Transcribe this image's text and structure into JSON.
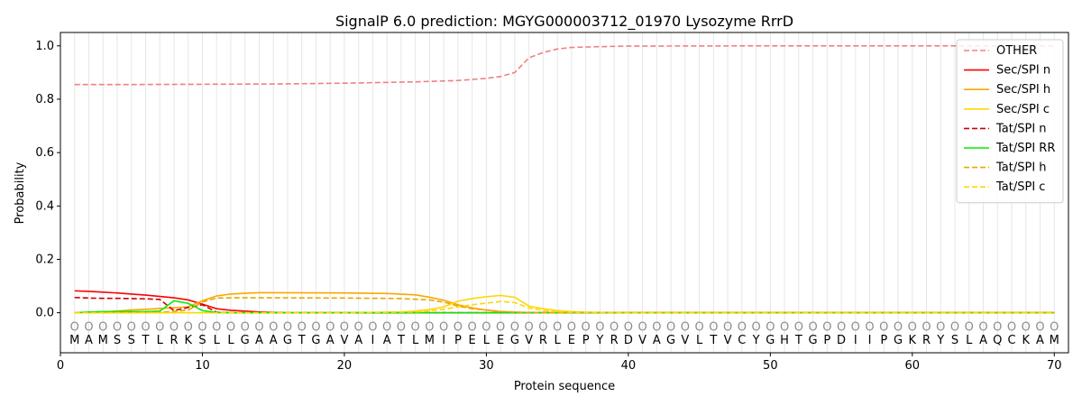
{
  "chart_data": {
    "type": "line",
    "title": "SignalP 6.0 prediction: MGYG000003712_01970 Lysozyme RrrD",
    "xlabel": "Protein sequence",
    "ylabel": "Probability",
    "xlim": [
      0,
      71
    ],
    "ylim": [
      -0.15,
      1.05
    ],
    "xticks": [
      0,
      10,
      20,
      30,
      40,
      50,
      60,
      70
    ],
    "yticks": [
      0.0,
      0.2,
      0.4,
      0.6,
      0.8,
      1.0
    ],
    "xtick_labels": [
      "0",
      "10",
      "20",
      "30",
      "40",
      "50",
      "60",
      "70"
    ],
    "ytick_labels": [
      "0.0",
      "0.2",
      "0.4",
      "0.6",
      "0.8",
      "1.0"
    ],
    "grid": "vertical",
    "legend_position": "top-right",
    "sequence": [
      "M",
      "A",
      "M",
      "S",
      "S",
      "T",
      "L",
      "R",
      "K",
      "S",
      "L",
      "L",
      "G",
      "A",
      "A",
      "G",
      "T",
      "G",
      "A",
      "V",
      "A",
      "I",
      "A",
      "T",
      "L",
      "M",
      "I",
      "P",
      "E",
      "L",
      "E",
      "G",
      "V",
      "R",
      "L",
      "E",
      "P",
      "Y",
      "R",
      "D",
      "V",
      "A",
      "G",
      "V",
      "L",
      "T",
      "V",
      "C",
      "Y",
      "G",
      "H",
      "T",
      "G",
      "P",
      "D",
      "I",
      "I",
      "P",
      "G",
      "K",
      "R",
      "Y",
      "S",
      "L",
      "A",
      "Q",
      "C",
      "K",
      "A",
      "M"
    ],
    "marker_label": "O",
    "series": [
      {
        "name": "OTHER",
        "color": "#f08080",
        "dash": "dashed",
        "x": [
          1,
          5,
          10,
          15,
          20,
          25,
          28,
          30,
          31,
          32,
          33,
          34,
          35,
          36,
          38,
          40,
          50,
          60,
          70
        ],
        "y": [
          0.855,
          0.855,
          0.856,
          0.857,
          0.86,
          0.865,
          0.87,
          0.878,
          0.885,
          0.9,
          0.955,
          0.975,
          0.988,
          0.994,
          0.997,
          0.999,
          1.0,
          1.0,
          1.0
        ]
      },
      {
        "name": "Sec/SPI n",
        "color": "#ff0000",
        "dash": "solid",
        "x": [
          1,
          2,
          3,
          4,
          5,
          6,
          7,
          8,
          9,
          10,
          11,
          12,
          13,
          14,
          15,
          16,
          20,
          30,
          70
        ],
        "y": [
          0.082,
          0.08,
          0.077,
          0.074,
          0.07,
          0.066,
          0.061,
          0.056,
          0.048,
          0.032,
          0.015,
          0.009,
          0.006,
          0.003,
          0.001,
          0.0,
          0.0,
          0.0,
          0.0
        ]
      },
      {
        "name": "Sec/SPI h",
        "color": "#ffa500",
        "dash": "solid",
        "x": [
          1,
          3,
          5,
          7,
          9,
          10,
          11,
          12,
          13,
          14,
          15,
          20,
          23,
          25,
          26,
          27,
          28,
          29,
          30,
          31,
          32,
          34,
          36,
          40,
          70
        ],
        "y": [
          0.0,
          0.003,
          0.01,
          0.016,
          0.022,
          0.045,
          0.063,
          0.07,
          0.073,
          0.075,
          0.075,
          0.074,
          0.072,
          0.067,
          0.058,
          0.047,
          0.03,
          0.018,
          0.01,
          0.004,
          0.002,
          0.0,
          0.0,
          0.0,
          0.0
        ]
      },
      {
        "name": "Sec/SPI c",
        "color": "#ffd700",
        "dash": "solid",
        "x": [
          1,
          10,
          20,
          24,
          25,
          26,
          27,
          28,
          29,
          30,
          31,
          32,
          33,
          34,
          35,
          36,
          37,
          40,
          70
        ],
        "y": [
          0.0,
          0.0,
          0.0,
          0.003,
          0.006,
          0.012,
          0.022,
          0.043,
          0.053,
          0.06,
          0.065,
          0.058,
          0.025,
          0.015,
          0.008,
          0.004,
          0.002,
          0.0,
          0.0
        ]
      },
      {
        "name": "Tat/SPI n",
        "color": "#cc0000",
        "dash": "dashed",
        "x": [
          1,
          2,
          3,
          4,
          5,
          6,
          7,
          8,
          9,
          10,
          11,
          12,
          15,
          20,
          70
        ],
        "y": [
          0.057,
          0.055,
          0.054,
          0.054,
          0.053,
          0.052,
          0.05,
          0.008,
          0.02,
          0.03,
          0.002,
          0.0,
          0.0,
          0.0,
          0.0
        ]
      },
      {
        "name": "Tat/SPI RR",
        "color": "#00ee00",
        "dash": "solid",
        "x": [
          1,
          2,
          3,
          4,
          5,
          6,
          7,
          8,
          9,
          10,
          11,
          12,
          20,
          30,
          70
        ],
        "y": [
          0.0,
          0.003,
          0.004,
          0.004,
          0.004,
          0.004,
          0.006,
          0.045,
          0.035,
          0.008,
          0.001,
          0.0,
          0.0,
          0.0,
          0.0
        ]
      },
      {
        "name": "Tat/SPI h",
        "color": "#e6a800",
        "dash": "dashed",
        "x": [
          1,
          5,
          7,
          8,
          9,
          10,
          11,
          12,
          15,
          20,
          24,
          26,
          27,
          28,
          29,
          30,
          31,
          32,
          33,
          34,
          36,
          40,
          70
        ],
        "y": [
          0.0,
          0.0,
          0.002,
          0.005,
          0.01,
          0.04,
          0.055,
          0.056,
          0.056,
          0.055,
          0.053,
          0.048,
          0.04,
          0.025,
          0.015,
          0.01,
          0.005,
          0.002,
          0.001,
          0.0,
          0.0,
          0.0,
          0.0
        ]
      },
      {
        "name": "Tat/SPI c",
        "color": "#ffd700",
        "dash": "dashed",
        "x": [
          1,
          10,
          20,
          25,
          26,
          27,
          28,
          29,
          30,
          31,
          32,
          33,
          34,
          35,
          36,
          40,
          70
        ],
        "y": [
          0.0,
          0.0,
          0.0,
          0.003,
          0.007,
          0.013,
          0.022,
          0.03,
          0.036,
          0.042,
          0.038,
          0.018,
          0.008,
          0.004,
          0.002,
          0.0,
          0.0
        ]
      }
    ]
  }
}
